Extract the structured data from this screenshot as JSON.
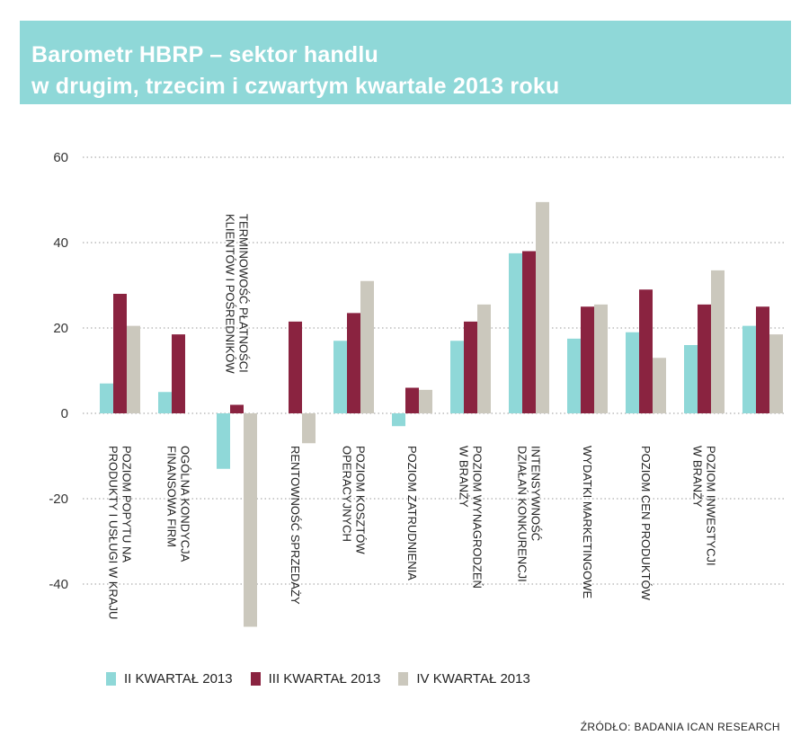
{
  "header": {
    "title_line1": "Barometr HBRP – sektor handlu",
    "title_line2": "w drugim, trzecim i czwartym kwartale 2013 roku"
  },
  "colors": {
    "header_band": "#8fd8d8",
    "series": [
      "#8fd8d8",
      "#8a2340",
      "#cbc8bd"
    ],
    "grid": "#9a9a9a"
  },
  "chart_data": {
    "type": "bar",
    "orientation": "vertical",
    "title": "Barometr HBRP – sektor handlu w drugim, trzecim i czwartym kwartale 2013 roku",
    "ylim": [
      -50,
      60
    ],
    "yticks": [
      60,
      40,
      20,
      0,
      -20,
      -40
    ],
    "grid": true,
    "legend_position": "bottom",
    "categories": [
      [
        "POZIOM POPYTU NA",
        "PRODUKTY I USŁUGI W KRAJU"
      ],
      [
        "OGÓLNA KONDYCJA",
        "FINANSOWA FIRM"
      ],
      [
        "TERMINOWOŚĆ PŁATNOŚCI",
        "KLIENTÓW I POŚREDNIKÓW"
      ],
      [
        "RENTOWNOŚĆ SPRZEDAŻY"
      ],
      [
        "POZIOM KOSZTÓW",
        "OPERACYJNYCH"
      ],
      [
        "POZIOM ZATRUDNIENIA"
      ],
      [
        "POZIOM WYNAGRODZEŃ",
        "W BRANŻY"
      ],
      [
        "INTENSYWNOŚĆ",
        "DZIAŁAŃ KONKURENCJI"
      ],
      [
        "WYDATKI MARKETINGOWE"
      ],
      [
        "POZIOM CEN PRODUKTÓW"
      ],
      [
        "POZIOM INWESTYCJI",
        "W BRANŻY"
      ],
      []
    ],
    "series": [
      {
        "name": "II KWARTAŁ 2013",
        "values": [
          7,
          5,
          -13,
          0,
          17,
          -3,
          17,
          37.5,
          17.5,
          19,
          16,
          20.5
        ]
      },
      {
        "name": "III KWARTAŁ 2013",
        "values": [
          28,
          18.5,
          2,
          21.5,
          23.5,
          6,
          21.5,
          38,
          25,
          29,
          25.5,
          25
        ]
      },
      {
        "name": "IV KWARTAŁ 2013",
        "values": [
          20.5,
          0,
          -50,
          -7,
          31,
          5.5,
          25.5,
          49.5,
          25.5,
          13,
          33.5,
          18.5
        ]
      }
    ]
  },
  "legend": {
    "items": [
      "II KWARTAŁ 2013",
      "III KWARTAŁ 2013",
      "IV KWARTAŁ 2013"
    ]
  },
  "source": "ŹRÓDŁO: BADANIA ICAN RESEARCH"
}
